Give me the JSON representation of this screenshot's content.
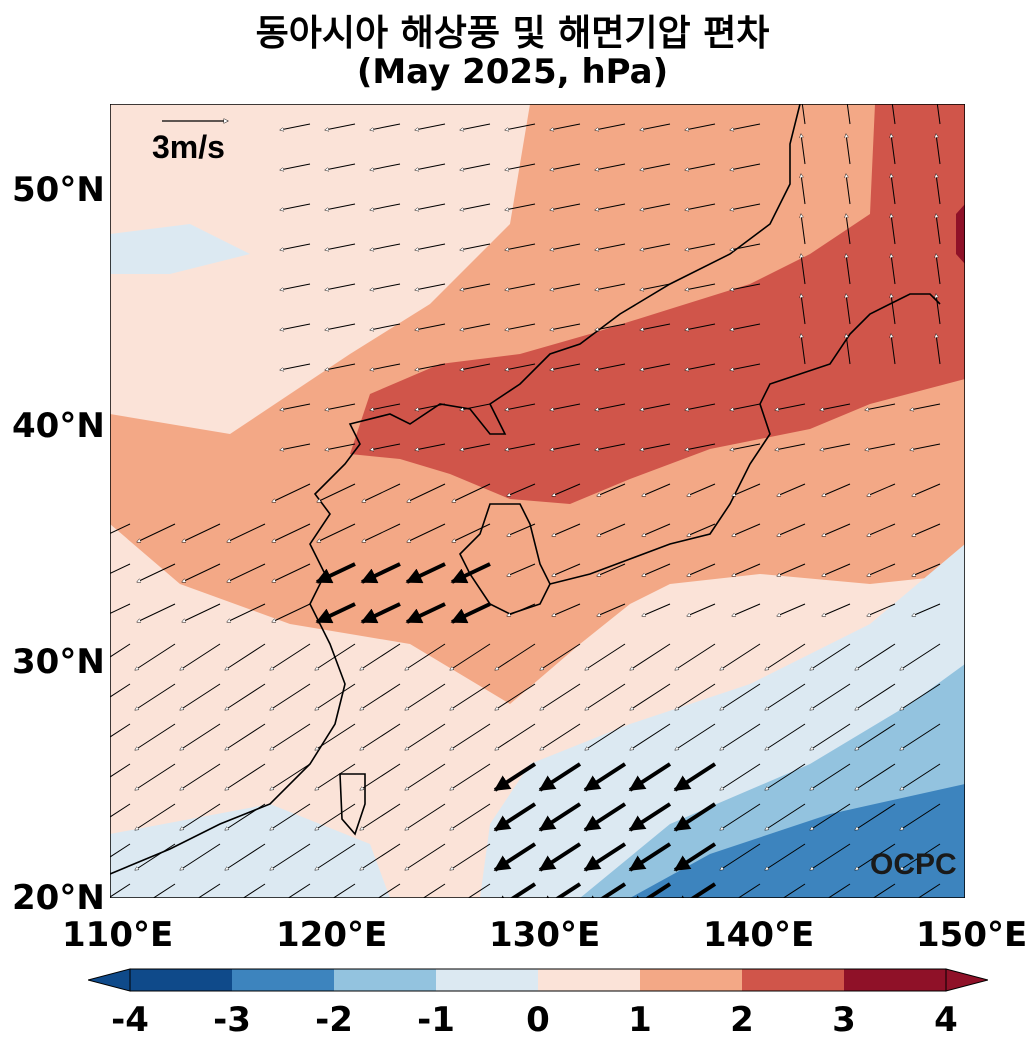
{
  "title": "동아시아 해상풍 및 해면기압 편차",
  "subtitle": "(May 2025, hPa)",
  "reference_vector": {
    "label": "3m/s",
    "speed": 3
  },
  "watermark": "OCPC",
  "lat_labels": [
    "50°N",
    "40°N",
    "30°N",
    "20°N"
  ],
  "lon_labels": [
    "110°E",
    "120°E",
    "130°E",
    "140°E",
    "150°E"
  ],
  "colorbar": {
    "ticks": [
      "-4",
      "-3",
      "-2",
      "-1",
      "0",
      "1",
      "2",
      "3",
      "4"
    ],
    "colors": [
      "#0f4a8a",
      "#3d84be",
      "#93c3df",
      "#dce9f2",
      "#fbe3d8",
      "#f3a886",
      "#d0554a",
      "#8f1128"
    ]
  },
  "map_extent": {
    "lon": [
      110,
      150
    ],
    "lat": [
      20,
      53.5
    ]
  }
}
